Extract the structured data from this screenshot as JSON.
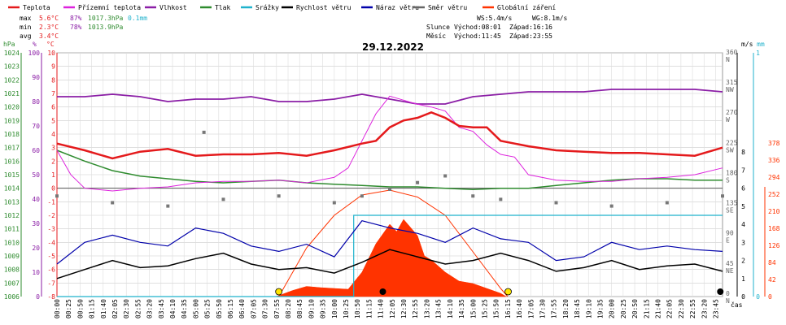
{
  "chart_data": {
    "type": "line",
    "title": "29.12.2022",
    "legend": [
      {
        "key": "teplota",
        "label": "Teplota",
        "color": "#e41a1c"
      },
      {
        "key": "rosny",
        "label": "Přízemní teplota",
        "color": "#dd22dd"
      },
      {
        "key": "vlhkost",
        "label": "Vlhkost",
        "color": "#8b1ea6"
      },
      {
        "key": "tlak",
        "label": "Tlak",
        "color": "#2e8b2e"
      },
      {
        "key": "srazky",
        "label": "Srážky",
        "color": "#1fb2cc"
      },
      {
        "key": "rychlost",
        "label": "Rychlost větru",
        "color": "#000000"
      },
      {
        "key": "naraz",
        "label": "Náraz větru",
        "color": "#0000aa"
      },
      {
        "key": "smer",
        "label": "Směr větru",
        "color": "#666666"
      },
      {
        "key": "zareni",
        "label": "Globální záření",
        "color": "#ff3300"
      }
    ],
    "stats": {
      "max": {
        "label": "max",
        "temp": "5.6°C",
        "hum": "87%",
        "press": "1017.3hPa",
        "rain": "0.1mm"
      },
      "min": {
        "label": "min",
        "temp": "2.3°C",
        "hum": "78%",
        "press": "1013.9hPa"
      },
      "avg": {
        "label": "avg",
        "temp": "3.4°C"
      },
      "wind": {
        "ws": "WS:5.4m/s",
        "wg": "WG:8.1m/s"
      },
      "sun": {
        "label": "Slunce",
        "rise": "Východ:08:01",
        "set": "Západ:16:16"
      },
      "moon": {
        "label": "Měsíc",
        "rise": "Východ:11:45",
        "set": "Západ:23:55"
      }
    },
    "axes": {
      "hpa": {
        "label": "hPa",
        "range": [
          1006,
          1024
        ],
        "color": "#2e8b2e"
      },
      "pct": {
        "label": "%",
        "range": [
          0,
          100
        ],
        "color": "#8b1ea6"
      },
      "degc": {
        "label": "°C",
        "range": [
          -8,
          10
        ],
        "color": "#e41a1c"
      },
      "ms": {
        "label": "m/s",
        "range": [
          0,
          8
        ],
        "color": "#000000"
      },
      "mm": {
        "label": "mm",
        "range": [
          0,
          1
        ],
        "color": "#1fb2cc"
      },
      "rad": {
        "label": "",
        "ticks": [
          0,
          42,
          84,
          126,
          168,
          210,
          252,
          294,
          336,
          378
        ],
        "color": "#ff3300"
      },
      "dir": {
        "labels": [
          "N",
          "NE",
          "E",
          "SE",
          "S",
          "SW",
          "W",
          "NW",
          "N"
        ],
        "degrees": [
          0,
          45,
          90,
          135,
          180,
          225,
          270,
          315,
          360
        ]
      },
      "x_label": "čas",
      "x_ticks": [
        "00:00",
        "00:25",
        "00:50",
        "01:15",
        "01:40",
        "02:05",
        "02:30",
        "02:55",
        "03:20",
        "03:45",
        "04:10",
        "04:35",
        "05:00",
        "05:25",
        "05:50",
        "06:15",
        "06:40",
        "07:05",
        "07:30",
        "07:55",
        "08:20",
        "08:45",
        "09:10",
        "09:35",
        "10:00",
        "10:25",
        "10:50",
        "11:15",
        "11:40",
        "12:05",
        "12:30",
        "12:55",
        "13:20",
        "13:45",
        "14:10",
        "14:35",
        "15:00",
        "15:25",
        "15:50",
        "16:15",
        "16:40",
        "17:05",
        "17:30",
        "17:55",
        "18:20",
        "18:45",
        "19:10",
        "19:35",
        "20:00",
        "20:25",
        "20:50",
        "21:15",
        "21:40",
        "22:05",
        "22:30",
        "22:55",
        "23:20",
        "23:45"
      ]
    },
    "series": {
      "teplota": {
        "unit": "°C",
        "x": [
          0,
          1,
          2,
          3,
          4,
          5,
          6,
          7,
          8,
          9,
          10,
          11,
          11.5,
          12,
          12.5,
          13,
          13.5,
          14,
          14.5,
          15,
          15.5,
          16,
          17,
          18,
          19,
          20,
          21,
          22,
          23,
          24
        ],
        "y": [
          3.3,
          2.8,
          2.2,
          2.7,
          2.9,
          2.4,
          2.5,
          2.5,
          2.6,
          2.4,
          2.8,
          3.3,
          3.5,
          4.5,
          5.0,
          5.2,
          5.6,
          5.2,
          4.6,
          4.5,
          4.5,
          3.5,
          3.1,
          2.8,
          2.7,
          2.6,
          2.6,
          2.5,
          2.4,
          3.0
        ]
      },
      "rosny": {
        "unit": "°C",
        "x": [
          0,
          0.5,
          1,
          2,
          3,
          4,
          5,
          6,
          7,
          8,
          9,
          10,
          10.5,
          11,
          11.5,
          12,
          12.5,
          13,
          13.5,
          14,
          14.5,
          15,
          15.5,
          16,
          16.5,
          17,
          18,
          19,
          20,
          21,
          22,
          23,
          24
        ],
        "y": [
          2.8,
          1.0,
          0.0,
          -0.2,
          0.0,
          0.1,
          0.4,
          0.5,
          0.5,
          0.6,
          0.4,
          0.8,
          1.5,
          3.5,
          5.5,
          6.8,
          6.5,
          6.2,
          6.0,
          5.7,
          4.5,
          4.2,
          3.2,
          2.5,
          2.3,
          1.0,
          0.6,
          0.5,
          0.5,
          0.7,
          0.8,
          1.0,
          1.5
        ]
      },
      "vlhkost": {
        "unit": "%",
        "x": [
          0,
          1,
          2,
          3,
          4,
          5,
          6,
          7,
          8,
          9,
          10,
          11,
          12,
          13,
          14,
          15,
          16,
          17,
          18,
          19,
          20,
          21,
          22,
          23,
          24
        ],
        "y": [
          82,
          82,
          83,
          82,
          80,
          81,
          81,
          82,
          80,
          80,
          81,
          83,
          81,
          79,
          79,
          82,
          83,
          84,
          84,
          84,
          85,
          85,
          85,
          85,
          84
        ]
      },
      "tlak": {
        "unit": "hPa",
        "x": [
          0,
          1,
          2,
          3,
          4,
          5,
          6,
          7,
          8,
          9,
          10,
          11,
          12,
          13,
          14,
          15,
          16,
          17,
          18,
          19,
          20,
          21,
          22,
          23,
          24
        ],
        "y": [
          1016.8,
          1016.0,
          1015.3,
          1014.9,
          1014.7,
          1014.5,
          1014.4,
          1014.5,
          1014.6,
          1014.4,
          1014.3,
          1014.2,
          1014.1,
          1014.1,
          1014.0,
          1013.9,
          1014.0,
          1014.0,
          1014.2,
          1014.4,
          1014.6,
          1014.7,
          1014.7,
          1014.6,
          1014.6
        ]
      },
      "srazky": {
        "unit": "mm",
        "x": [
          0,
          10.7,
          10.7,
          24
        ],
        "y": [
          0,
          0,
          0.1,
          0.1
        ]
      },
      "rychlost": {
        "unit": "m/s",
        "x": [
          0,
          1,
          2,
          3,
          4,
          5,
          6,
          7,
          8,
          9,
          10,
          11,
          12,
          13,
          14,
          15,
          16,
          17,
          18,
          19,
          20,
          21,
          22,
          23,
          24
        ],
        "y": [
          1.0,
          1.5,
          2.0,
          1.6,
          1.7,
          2.1,
          2.4,
          1.8,
          1.5,
          1.6,
          1.3,
          1.9,
          2.6,
          2.2,
          1.8,
          2.0,
          2.4,
          2.0,
          1.4,
          1.6,
          2.0,
          1.5,
          1.7,
          1.8,
          1.4
        ]
      },
      "naraz": {
        "unit": "m/s",
        "x": [
          0,
          1,
          2,
          3,
          4,
          5,
          6,
          7,
          8,
          9,
          10,
          11,
          12,
          13,
          14,
          15,
          16,
          17,
          18,
          19,
          20,
          21,
          22,
          23,
          24
        ],
        "y": [
          1.8,
          3.0,
          3.4,
          3.0,
          2.8,
          3.8,
          3.5,
          2.8,
          2.5,
          2.9,
          2.2,
          4.2,
          3.8,
          3.5,
          3.0,
          3.8,
          3.2,
          3.0,
          2.0,
          2.2,
          3.0,
          2.6,
          2.8,
          2.6,
          2.5
        ]
      },
      "smer": {
        "unit": "°",
        "x": [
          0,
          2,
          4,
          5.3,
          6,
          8,
          10,
          11,
          12,
          13,
          14,
          15,
          16,
          18,
          20,
          22,
          24
        ],
        "y": [
          150,
          140,
          135,
          245,
          145,
          150,
          140,
          150,
          160,
          170,
          180,
          150,
          145,
          140,
          135,
          140,
          150
        ]
      },
      "zareni": {
        "unit": "W/m²",
        "x": [
          7.9,
          8.5,
          9,
          9.5,
          10,
          10.5,
          11,
          11.5,
          12,
          12.25,
          12.5,
          12.75,
          13,
          13.25,
          13.5,
          14,
          14.5,
          15,
          15.5,
          16,
          16.2
        ],
        "y": [
          0,
          15,
          25,
          22,
          20,
          18,
          60,
          130,
          178,
          160,
          190,
          170,
          150,
          100,
          90,
          60,
          38,
          32,
          20,
          8,
          0
        ]
      },
      "zareni_clear": {
        "unit": "W/m²",
        "x": [
          8.0,
          9,
          10,
          11,
          12,
          13,
          14,
          15,
          16,
          16.25
        ],
        "y": [
          0,
          120,
          200,
          250,
          262,
          245,
          200,
          110,
          20,
          0
        ]
      }
    },
    "markers": {
      "sunrise": 8.0,
      "sunset": 16.27,
      "moonrise": 11.75,
      "moonset": 23.92
    }
  }
}
